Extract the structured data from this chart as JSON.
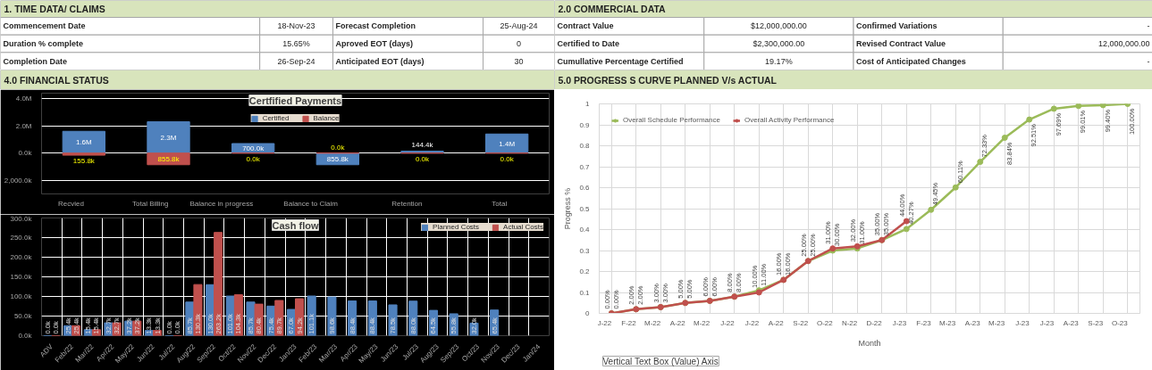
{
  "chart_data": [
    {
      "type": "other",
      "title": "1. TIME DATA/ CLAIMS",
      "annotations": [
        "Commencement Date",
        "18-Nov-23",
        "Forecast Completion",
        "25-Aug-24",
        "Duration % complete",
        "15.65%",
        "Aproved EOT (days)",
        "0",
        "Completion Date",
        "26-Sep-24",
        "Anticipated EOT (days)",
        "30"
      ]
    },
    {
      "type": "other",
      "title": "2.0 COMMERCIAL DATA",
      "annotations": [
        "Contract Value",
        "$12,000,000.00",
        "Confirmed Variations",
        "-",
        "Certified to Date",
        "$2,300,000.00",
        "Revised Contract Value",
        "12,000,000.00",
        "Cumullative Percentage Certified",
        "19.17%",
        "Cost of Anticipated Changes",
        "-"
      ]
    },
    {
      "type": "other",
      "title": "4.0 FINANCIAL STATUS"
    },
    {
      "type": "other",
      "title": "5.0 PROGRESS S CURVE PLANNED V/s ACTUAL"
    },
    {
      "type": "bar",
      "title": "Certfified Payments",
      "categories": [
        "Recvied",
        "Total Billing",
        "Balance in progress",
        "Balance to Claim",
        "Retention",
        "Total"
      ],
      "series": [
        {
          "name": "Certified",
          "color": "#4f81bd",
          "values": [
            1600000,
            2300000,
            700000,
            855800,
            144400,
            1400000
          ],
          "base": [
            0,
            0,
            0,
            -855800,
            0,
            0
          ],
          "value_labels": [
            "1.6M",
            "2.3M",
            "700.0k",
            "855.8k",
            "144.4k",
            "1.4M"
          ]
        },
        {
          "name": "Balance",
          "color": "#c0504d",
          "values": [
            155800,
            855800,
            0,
            0,
            0,
            0
          ],
          "base": [
            -155800,
            -855800,
            null,
            null,
            null,
            null
          ],
          "value_labels": [
            "155.8k",
            "855.8k",
            "0.0k",
            "0.0k",
            "0.0k",
            "0.0k"
          ]
        }
      ],
      "ylim": [
        -3000000,
        4400000
      ],
      "yticks": [
        {
          "value": 4000000,
          "label": "4.0M"
        },
        {
          "value": 2000000,
          "label": "2.0M"
        },
        {
          "value": 0,
          "label": "0.0k"
        },
        {
          "value": -2000000,
          "label": "2,000.0k"
        }
      ],
      "grid": "y",
      "legend": "top"
    },
    {
      "type": "bar",
      "title": "Cash flow",
      "categories": [
        "ADV",
        "Feb/22",
        "Mar/22",
        "Apr/22",
        "May/22",
        "Jun/22",
        "Jul/22",
        "Aug/22",
        "Sep/22",
        "Oct/22",
        "Nov/22",
        "Dec/22",
        "Jan/23",
        "Feb/23",
        "Mar/23",
        "Apr/23",
        "May/23",
        "Jun/23",
        "Jul/23",
        "Aug/23",
        "Sep/23",
        "Oct/23",
        "Nov/23",
        "Dec/23",
        "Jan/24"
      ],
      "series": [
        {
          "name": "Planned Costs",
          "color": "#4f81bd",
          "values": [
            0,
            25400,
            15400,
            32700,
            37200,
            13300,
            0,
            85700,
            130000,
            101000,
            85700,
            75400,
            67000,
            101100,
            98600,
            88400,
            88400,
            78500,
            88000,
            64500,
            55800,
            32000,
            65400,
            null,
            null
          ],
          "value_labels": [
            "0.0k",
            "25.4k",
            "15.4k",
            "32.7k",
            "37.2k",
            "13.3k",
            "0.0k",
            "85.7k",
            "130.0k",
            "101.0k",
            "85.7k",
            "75.4k",
            "67.0k",
            "101.1k",
            "98.6k",
            "88.4k",
            "88.4k",
            "78.5k",
            "88.0k",
            "64.5k",
            "55.8k",
            "32.0k",
            "65.4k",
            null,
            null
          ]
        },
        {
          "name": "Actual Costs",
          "color": "#c0504d",
          "values": [
            0,
            25400,
            15400,
            32700,
            37200,
            13300,
            0,
            130300,
            263200,
            104300,
            80400,
            89700,
            94200,
            null,
            null,
            null,
            null,
            null,
            null,
            null,
            null,
            null,
            null,
            null,
            null
          ],
          "value_labels": [
            "0.0k",
            "25.4k",
            "15.4k",
            "32.7k",
            "37.2k",
            "13.3k",
            "0.0k",
            "130.3k",
            "263.2k",
            "104.3k",
            "80.4k",
            "89.7k",
            "94.2k",
            null,
            null,
            null,
            null,
            null,
            null,
            null,
            null,
            null,
            null,
            null,
            null
          ]
        }
      ],
      "ylim": [
        0,
        300000
      ],
      "yticks": [
        {
          "value": 0,
          "label": "0.0k"
        },
        {
          "value": 50000,
          "label": "50.0k"
        },
        {
          "value": 100000,
          "label": "100.0k"
        },
        {
          "value": 150000,
          "label": "150.0k"
        },
        {
          "value": 200000,
          "label": "200.0k"
        },
        {
          "value": 250000,
          "label": "250.0k"
        },
        {
          "value": 300000,
          "label": "300.0k"
        }
      ],
      "grid": true,
      "legend": "top right"
    },
    {
      "type": "line",
      "xlabel": "Month",
      "ylabel": "Progress %",
      "categories": [
        "J-22",
        "F-22",
        "M-22",
        "A-22",
        "M-22",
        "J-22",
        "J-22",
        "A-22",
        "S-22",
        "O-22",
        "N-22",
        "D-22",
        "J-23",
        "F-23",
        "M-23",
        "A-23",
        "M-23",
        "J-23",
        "J-23",
        "A-23",
        "S-23",
        "O-23"
      ],
      "series": [
        {
          "name": "Overall Schedule Performance",
          "color": "#9bbb59",
          "values": [
            0,
            0.02,
            0.03,
            0.05,
            0.06,
            0.08,
            0.11,
            0.16,
            0.25,
            0.3,
            0.31,
            0.35,
            0.4027,
            0.4945,
            0.6011,
            0.7233,
            0.8384,
            0.9251,
            0.9769,
            0.9901,
            0.994,
            1.0
          ],
          "value_labels": [
            "0.00%",
            "2.00%",
            "3.00%",
            "5.00%",
            "6.00%",
            "8.00%",
            "11.00%",
            "16.00%",
            "25.00%",
            "30.00%",
            "31.00%",
            "35.00%",
            "40.27%",
            "49.45%",
            "60.11%",
            "72.33%",
            "83.84%",
            "92.51%",
            "97.69%",
            "99.01%",
            "99.40%",
            "100.00%"
          ]
        },
        {
          "name": "Overall Activity Performance",
          "color": "#c0504d",
          "values": [
            0,
            0.02,
            0.03,
            0.05,
            0.06,
            0.08,
            0.1,
            0.16,
            0.25,
            0.31,
            0.32,
            0.35,
            0.44,
            null,
            null,
            null,
            null,
            null,
            null,
            null,
            null,
            null
          ],
          "value_labels": [
            "0.00%",
            "2.00%",
            "3.00%",
            "5.00%",
            "6.00%",
            "8.00%",
            "10.00%",
            "16.00%",
            "25.00%",
            "31.00%",
            "32.00%",
            "35.00%",
            "44.00%",
            null,
            null,
            null,
            null,
            null,
            null,
            null,
            null,
            null
          ]
        }
      ],
      "ylim": [
        0,
        1
      ],
      "yticks": [
        0,
        0.1,
        0.2,
        0.3,
        0.4,
        0.5,
        0.6,
        0.7,
        0.8,
        0.9,
        1
      ],
      "grid": true,
      "legend": "top left",
      "marker": "circle",
      "line_style": "solid",
      "annotations": [
        "Vertical Text Box (Value) Axis"
      ]
    }
  ]
}
